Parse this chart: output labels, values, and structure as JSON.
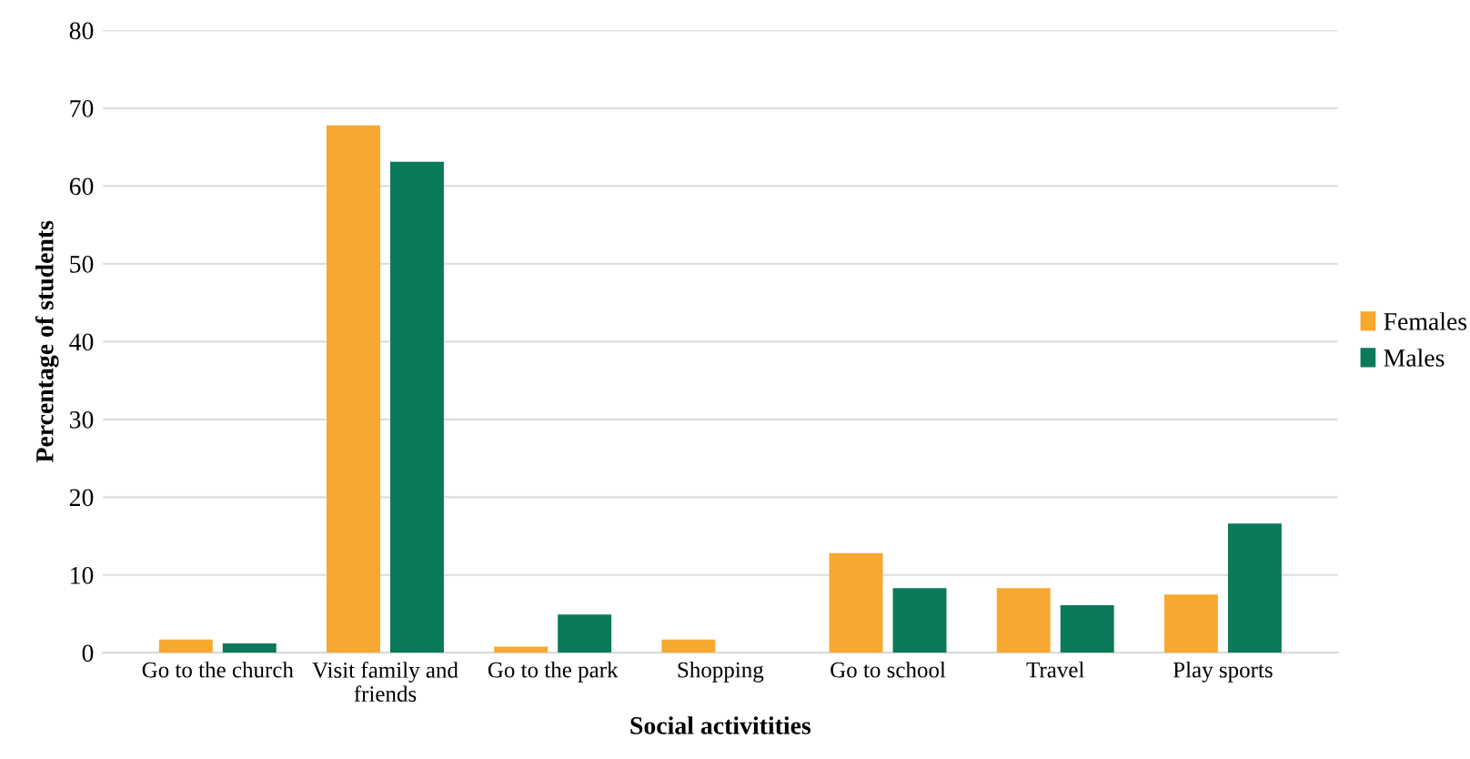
{
  "chart_data": {
    "type": "bar",
    "xlabel": "Social activitities",
    "ylabel": "Percentage of students",
    "categories": [
      "Go to the church",
      "Visit family and\nfriends",
      "Go to the park",
      "Shopping",
      "Go to school",
      "Travel",
      "Play sports"
    ],
    "series": [
      {
        "name": "Females",
        "color": "#f7a830",
        "values": [
          1.7,
          67.8,
          0.8,
          1.7,
          12.8,
          8.3,
          7.5
        ]
      },
      {
        "name": "Males",
        "color": "#0a7a5a",
        "values": [
          1.2,
          63.1,
          4.9,
          0,
          8.3,
          6.1,
          16.6
        ]
      }
    ],
    "ylim": [
      0,
      80
    ],
    "yticks": [
      0,
      10,
      20,
      30,
      40,
      50,
      60,
      70,
      80
    ],
    "grid": "y",
    "legend": "right"
  }
}
